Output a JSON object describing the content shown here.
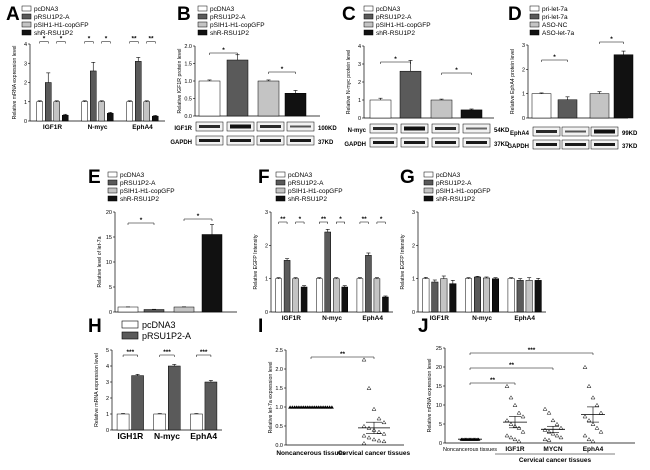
{
  "colors": {
    "white": "#ffffff",
    "dark": "#5a5a5a",
    "light": "#c4c4c4",
    "black": "#111111"
  },
  "chart_data": [
    {
      "panel": "A",
      "type": "bar",
      "ylabel": "Relative mRNA expression level",
      "ylim": [
        0,
        4
      ],
      "yticks": [
        0,
        1,
        2,
        3,
        4
      ],
      "categories": [
        "IGF1R",
        "N-myc",
        "EphA4"
      ],
      "legend": [
        "pcDNA3",
        "pRSU1P2-A",
        "pSIH1-H1-copGFP",
        "shR-RSU1P2"
      ],
      "series": [
        {
          "name": "pcDNA3",
          "color": "white",
          "values": [
            1.0,
            1.0,
            1.0
          ],
          "err": [
            0.05,
            0.05,
            0.05
          ]
        },
        {
          "name": "pRSU1P2-A",
          "color": "dark",
          "values": [
            2.0,
            2.6,
            3.1
          ],
          "err": [
            0.5,
            0.45,
            0.2
          ]
        },
        {
          "name": "pSIH1-H1-copGFP",
          "color": "light",
          "values": [
            1.0,
            1.0,
            1.0
          ],
          "err": [
            0.05,
            0.05,
            0.05
          ]
        },
        {
          "name": "shR-RSU1P2",
          "color": "black",
          "values": [
            0.3,
            0.4,
            0.25
          ],
          "err": [
            0.05,
            0.05,
            0.04
          ]
        }
      ],
      "sig": [
        "*",
        "*",
        "*",
        "*",
        "**",
        "**"
      ]
    },
    {
      "panel": "B",
      "type": "bar",
      "ylabel": "Relative IGF1R protein level",
      "ylim": [
        0,
        2.0
      ],
      "yticks": [
        0,
        0.5,
        1.0,
        1.5,
        2.0
      ],
      "legend": [
        "pcDNA3",
        "pRSU1P2-A",
        "pSIH1-H1-copGFP",
        "shR-RSU1P2"
      ],
      "values": [
        1.0,
        1.6,
        1.0,
        0.65
      ],
      "err": [
        0.03,
        0.15,
        0.03,
        0.08
      ],
      "colors": [
        "white",
        "dark",
        "light",
        "black"
      ],
      "sig": [
        "*",
        "*"
      ],
      "blot": [
        {
          "name": "IGF1R",
          "size": "100KD"
        },
        {
          "name": "GAPDH",
          "size": "37KD"
        }
      ]
    },
    {
      "panel": "C",
      "type": "bar",
      "ylabel": "Relative N-myc protein level",
      "ylim": [
        0,
        4
      ],
      "yticks": [
        0,
        1,
        2,
        3,
        4
      ],
      "legend": [
        "pcDNA3",
        "pRSU1P2-A",
        "pSIH1-H1-copGFP",
        "shR-RSU1P2"
      ],
      "values": [
        1.0,
        2.6,
        1.0,
        0.45
      ],
      "err": [
        0.1,
        0.6,
        0.05,
        0.05
      ],
      "colors": [
        "white",
        "dark",
        "light",
        "black"
      ],
      "sig": [
        "*",
        "*"
      ],
      "blot": [
        {
          "name": "N-myc",
          "size": "54KD"
        },
        {
          "name": "GAPDH",
          "size": "37KD"
        }
      ]
    },
    {
      "panel": "D",
      "type": "bar",
      "ylabel": "Relative EphA4 protein level",
      "ylim": [
        0,
        3
      ],
      "yticks": [
        0,
        1,
        2,
        3
      ],
      "legend": [
        "pri-let-7a",
        "pri-let-7a",
        "ASO-NC",
        "ASO-let-7a"
      ],
      "values": [
        1.0,
        0.75,
        1.0,
        2.6
      ],
      "err": [
        0.03,
        0.12,
        0.08,
        0.15
      ],
      "colors": [
        "white",
        "dark",
        "light",
        "black"
      ],
      "sig": [
        "*",
        "*"
      ],
      "blot": [
        {
          "name": "EphA4",
          "size": "99KD"
        },
        {
          "name": "GAPDH",
          "size": "37KD"
        }
      ]
    },
    {
      "panel": "E",
      "type": "bar",
      "ylabel": "Relative level of let-7a",
      "ylim": [
        0,
        20
      ],
      "yticks": [
        0,
        5,
        10,
        15,
        20
      ],
      "legend": [
        "pcDNA3",
        "pRSU1P2-A",
        "pSIH1-H1-copGFP",
        "shR-RSU1P2"
      ],
      "values": [
        1.0,
        0.5,
        1.0,
        15.5
      ],
      "err": [
        0.02,
        0.05,
        0.04,
        2.0
      ],
      "colors": [
        "white",
        "dark",
        "light",
        "black"
      ],
      "sig": [
        "*",
        "*"
      ]
    },
    {
      "panel": "F",
      "type": "bar",
      "ylabel": "Relative EGFP Intensity",
      "ylim": [
        0,
        3
      ],
      "yticks": [
        0,
        1,
        2,
        3
      ],
      "categories": [
        "IGF1R",
        "N-myc",
        "EphA4"
      ],
      "legend": [
        "pcDNA3",
        "pRSU1P2-A",
        "pSIH1-H1-copGFP",
        "shR-RSU1P2"
      ],
      "series": [
        {
          "name": "pcDNA3",
          "color": "white",
          "values": [
            1.0,
            1.0,
            1.0
          ],
          "err": [
            0.03,
            0.03,
            0.03
          ]
        },
        {
          "name": "pRSU1P2-A",
          "color": "dark",
          "values": [
            1.55,
            2.4,
            1.7
          ],
          "err": [
            0.05,
            0.08,
            0.07
          ]
        },
        {
          "name": "pSIH1-H1-copGFP",
          "color": "light",
          "values": [
            1.0,
            1.0,
            1.0
          ],
          "err": [
            0.03,
            0.03,
            0.03
          ]
        },
        {
          "name": "shR-RSU1P2",
          "color": "black",
          "values": [
            0.75,
            0.75,
            0.45
          ],
          "err": [
            0.04,
            0.04,
            0.03
          ]
        }
      ],
      "sig": [
        "**",
        "*",
        "**",
        "*",
        "**",
        "*"
      ]
    },
    {
      "panel": "G",
      "type": "bar",
      "ylabel": "Relative EGFP Intensity",
      "ylim": [
        0,
        3
      ],
      "yticks": [
        0,
        1,
        2,
        3
      ],
      "categories": [
        "IGF1R",
        "N-myc",
        "EphA4"
      ],
      "legend": [
        "pcDNA3",
        "pRSU1P2-A",
        "pSIH1-H1-copGFP",
        "shR-RSU1P2"
      ],
      "series": [
        {
          "name": "pcDNA3",
          "color": "white",
          "values": [
            1.0,
            1.0,
            1.0
          ],
          "err": [
            0.04,
            0.03,
            0.03
          ]
        },
        {
          "name": "pRSU1P2-A",
          "color": "dark",
          "values": [
            0.9,
            1.05,
            0.95
          ],
          "err": [
            0.06,
            0.02,
            0.05
          ]
        },
        {
          "name": "pSIH1-H1-copGFP",
          "color": "light",
          "values": [
            1.0,
            1.02,
            0.95
          ],
          "err": [
            0.08,
            0.03,
            0.08
          ]
        },
        {
          "name": "shR-RSU1P2",
          "color": "black",
          "values": [
            0.85,
            1.0,
            0.95
          ],
          "err": [
            0.1,
            0.03,
            0.06
          ]
        }
      ]
    },
    {
      "panel": "H",
      "type": "bar",
      "ylabel": "Relative mRNA expression level",
      "ylim": [
        0,
        5
      ],
      "yticks": [
        0,
        1,
        2,
        3,
        4,
        5
      ],
      "categories": [
        "IGH1R",
        "N-myc",
        "EphA4"
      ],
      "legend": [
        "pcDNA3",
        "pRSU1P2-A"
      ],
      "series": [
        {
          "name": "pcDNA3",
          "color": "white",
          "values": [
            1.0,
            1.0,
            1.0
          ],
          "err": [
            0.03,
            0.03,
            0.03
          ]
        },
        {
          "name": "pRSU1P2-A",
          "color": "dark",
          "values": [
            3.4,
            4.0,
            3.0
          ],
          "err": [
            0.08,
            0.1,
            0.1
          ]
        }
      ],
      "sig": [
        "***",
        "***",
        "***"
      ]
    },
    {
      "panel": "I",
      "type": "scatter",
      "ylabel": "Relative let-7a expression level",
      "ylim": [
        0,
        2.5
      ],
      "yticks": [
        0.0,
        0.5,
        1.0,
        1.5,
        2.0,
        2.5
      ],
      "categories": [
        "Noncancerous tissues",
        "Cervical cancer tissues"
      ],
      "groups": [
        {
          "points": [
            1,
            1,
            1,
            1,
            1,
            1,
            1,
            1,
            1,
            1,
            1,
            1,
            1,
            1,
            1,
            1,
            1,
            1,
            1,
            1
          ],
          "mean": 1.0,
          "sem": 0.0
        },
        {
          "points": [
            2.25,
            1.5,
            0.95,
            0.7,
            0.6,
            0.5,
            0.45,
            0.4,
            0.35,
            0.3,
            0.25,
            0.2,
            0.15,
            0.12,
            0.1,
            0.05
          ],
          "mean": 0.45,
          "sem": 0.15
        }
      ],
      "sig": [
        "**"
      ]
    },
    {
      "panel": "J",
      "type": "scatter",
      "ylabel": "Relative mRNA expression level",
      "ylim": [
        0,
        25
      ],
      "yticks": [
        0,
        5,
        10,
        15,
        20,
        25
      ],
      "categories": [
        "Noncancerous tissues",
        "IGF1R",
        "MYCN",
        "EphA4"
      ],
      "group_label": "Cervical cancer tissues",
      "groups": [
        {
          "points": [
            1,
            1,
            1,
            1,
            1,
            1,
            1,
            1,
            1,
            1,
            1,
            1,
            1,
            1
          ],
          "mean": 1.0,
          "sem": 0.0
        },
        {
          "points": [
            15,
            12,
            10,
            8,
            7,
            6,
            5,
            4.5,
            4,
            3,
            2,
            1.5,
            1,
            0.5
          ],
          "mean": 5.5,
          "sem": 1.5
        },
        {
          "points": [
            9,
            8,
            6,
            5,
            4,
            3.5,
            3,
            2.5,
            2,
            1.5,
            1,
            0.8
          ],
          "mean": 3.6,
          "sem": 0.8
        },
        {
          "points": [
            20,
            15,
            12,
            10,
            8,
            7,
            6,
            5,
            4,
            3,
            2,
            1,
            0.5
          ],
          "mean": 7.5,
          "sem": 2.0
        }
      ],
      "sig": [
        "***",
        "**",
        "**"
      ]
    }
  ]
}
